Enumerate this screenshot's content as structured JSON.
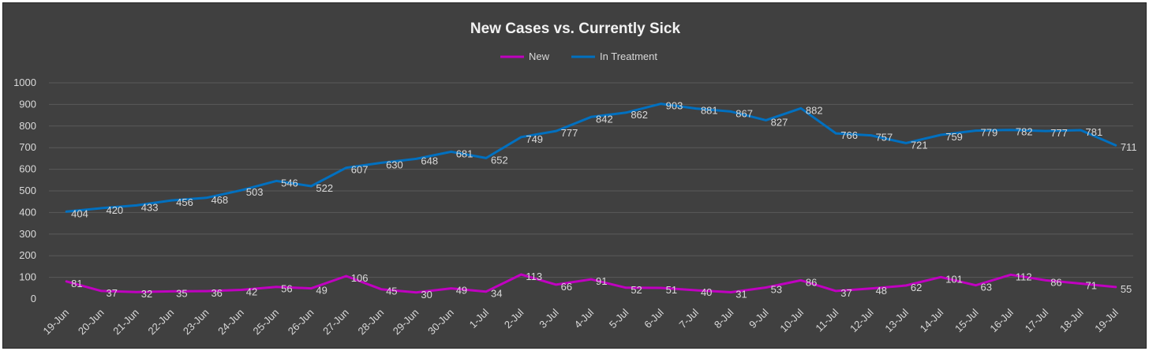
{
  "chart_data": {
    "type": "line",
    "title": "New Cases vs. Currently Sick",
    "xlabel": "",
    "ylabel": "",
    "ylim": [
      0,
      1000
    ],
    "yticks": [
      0,
      100,
      200,
      300,
      400,
      500,
      600,
      700,
      800,
      900,
      1000
    ],
    "grid": true,
    "legend_position": "top",
    "categories": [
      "19-Jun",
      "20-Jun",
      "21-Jun",
      "22-Jun",
      "23-Jun",
      "24-Jun",
      "25-Jun",
      "26-Jun",
      "27-Jun",
      "28-Jun",
      "29-Jun",
      "30-Jun",
      "1-Jul",
      "2-Jul",
      "3-Jul",
      "4-Jul",
      "5-Jul",
      "6-Jul",
      "7-Jul",
      "8-Jul",
      "9-Jul",
      "10-Jul",
      "11-Jul",
      "12-Jul",
      "13-Jul",
      "14-Jul",
      "15-Jul",
      "16-Jul",
      "17-Jul",
      "18-Jul",
      "19-Jul"
    ],
    "series": [
      {
        "name": "New",
        "color": "#c000c0",
        "values": [
          81,
          37,
          32,
          35,
          36,
          42,
          56,
          49,
          106,
          45,
          30,
          49,
          34,
          113,
          66,
          91,
          52,
          51,
          40,
          31,
          53,
          86,
          37,
          48,
          62,
          101,
          63,
          112,
          86,
          71,
          55
        ]
      },
      {
        "name": "In Treatment",
        "color": "#0070c0",
        "values": [
          404,
          420,
          433,
          456,
          468,
          503,
          546,
          522,
          607,
          630,
          648,
          681,
          652,
          749,
          777,
          842,
          862,
          903,
          881,
          867,
          827,
          882,
          766,
          757,
          721,
          759,
          779,
          782,
          777,
          781,
          711
        ]
      }
    ]
  }
}
